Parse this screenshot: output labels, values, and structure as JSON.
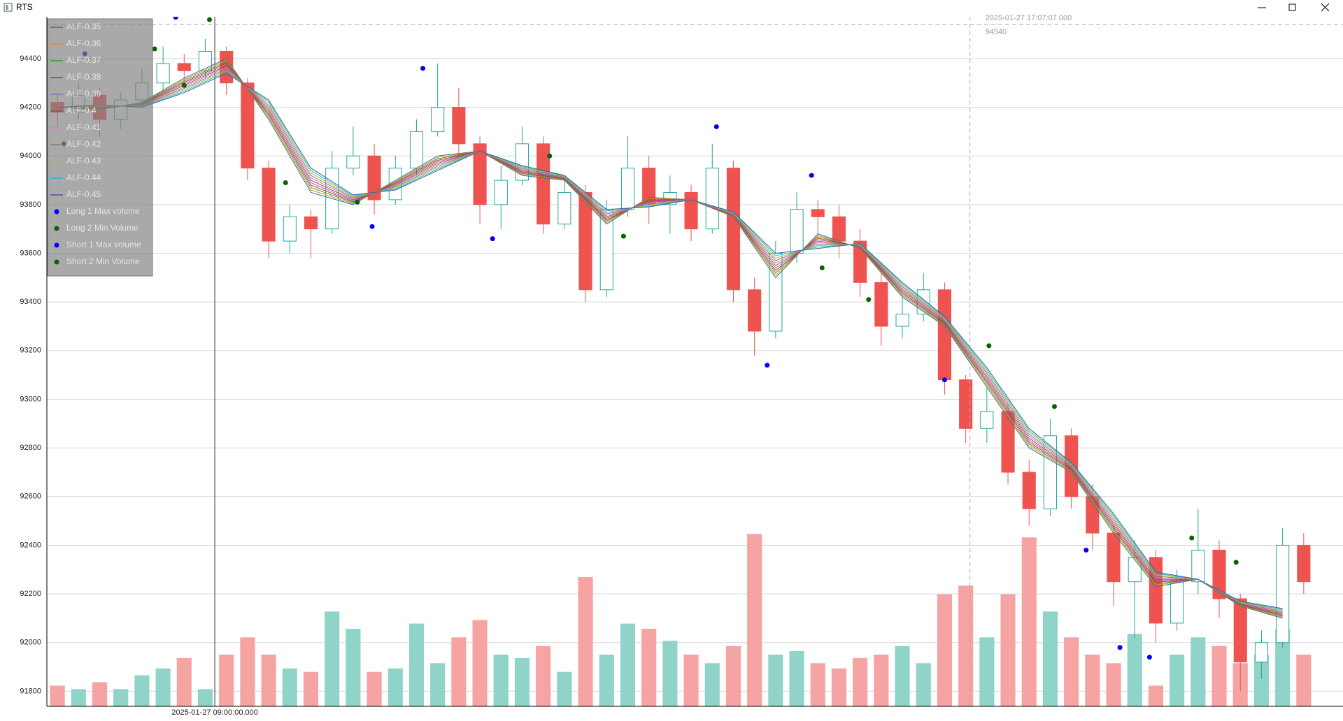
{
  "window": {
    "title": "RTS"
  },
  "chart_data": {
    "type": "candlestick",
    "open": [
      94220,
      94180,
      94250,
      94150,
      94230,
      94300,
      94380,
      94350,
      94430,
      94300,
      93950,
      93650,
      93750,
      93700,
      93950,
      94000,
      93820,
      93950,
      94100,
      94200,
      94050,
      93800,
      93900,
      94050,
      93720,
      93850,
      93450,
      93780,
      93950,
      93800,
      93850,
      93700,
      93950,
      93450,
      93280,
      93600,
      93780,
      93750,
      93650,
      93480,
      93300,
      93350,
      93450,
      93080,
      92880,
      92950,
      92700,
      92550,
      92850,
      92600,
      92450,
      92250,
      92350,
      92080,
      92250,
      92380,
      92180,
      91920,
      92000,
      92400
    ],
    "high": [
      94260,
      94300,
      94280,
      94260,
      94360,
      94450,
      94420,
      94480,
      94450,
      94320,
      93980,
      93800,
      93780,
      94020,
      94120,
      94050,
      94000,
      94150,
      94380,
      94280,
      94080,
      93960,
      94120,
      94080,
      93900,
      93880,
      93820,
      94080,
      94000,
      93920,
      93880,
      94050,
      93980,
      93500,
      93650,
      93850,
      93820,
      93800,
      93700,
      93520,
      93420,
      93520,
      93480,
      93100,
      93050,
      92980,
      92750,
      92920,
      92880,
      92650,
      92480,
      92420,
      92380,
      92300,
      92550,
      92420,
      92200,
      92050,
      92470,
      92450
    ],
    "low": [
      94120,
      94150,
      94080,
      94110,
      94200,
      94270,
      94300,
      94320,
      94250,
      93900,
      93580,
      93600,
      93580,
      93680,
      93920,
      93760,
      93800,
      93920,
      94080,
      94000,
      93720,
      93700,
      93880,
      93680,
      93700,
      93400,
      93420,
      93750,
      93720,
      93680,
      93650,
      93680,
      93400,
      93180,
      93250,
      93560,
      93680,
      93580,
      93420,
      93220,
      93250,
      93320,
      93020,
      92820,
      92820,
      92650,
      92480,
      92520,
      92550,
      92380,
      92150,
      92020,
      92000,
      92050,
      92200,
      92100,
      91800,
      91850,
      91980,
      92200
    ],
    "close": [
      94180,
      94250,
      94150,
      94230,
      94300,
      94380,
      94350,
      94430,
      94300,
      93950,
      93650,
      93750,
      93700,
      93950,
      94000,
      93820,
      93950,
      94100,
      94200,
      94050,
      93800,
      93900,
      94050,
      93720,
      93850,
      93450,
      93780,
      93950,
      93800,
      93850,
      93700,
      93950,
      93450,
      93280,
      93600,
      93780,
      93750,
      93650,
      93480,
      93300,
      93350,
      93450,
      93080,
      92880,
      92950,
      92700,
      92550,
      92850,
      92600,
      92450,
      92250,
      92350,
      92080,
      92250,
      92380,
      92180,
      91920,
      92000,
      92400,
      92250
    ],
    "volume": [
      12,
      10,
      14,
      10,
      18,
      22,
      28,
      10,
      30,
      40,
      30,
      22,
      20,
      55,
      45,
      20,
      22,
      48,
      25,
      40,
      50,
      30,
      28,
      35,
      20,
      75,
      30,
      48,
      45,
      38,
      30,
      25,
      35,
      100,
      30,
      32,
      25,
      22,
      28,
      30,
      35,
      25,
      65,
      70,
      40,
      65,
      98,
      55,
      40,
      30,
      25,
      42,
      12,
      30,
      40,
      35,
      25,
      30,
      45,
      30
    ],
    "up_color": "#26a69a",
    "down_color": "#ef5350",
    "volume_up_color": "#8fd3c9",
    "volume_down_color": "#f5a3a3",
    "xlim": [
      -0.5,
      60.86
    ],
    "xticks": [
      {
        "value": 7.45,
        "label": "2025-01-27 09:00:00.000"
      }
    ],
    "ylim": [
      91738,
      94572
    ],
    "yticks": [
      91800,
      92000,
      92200,
      92400,
      92600,
      92800,
      93000,
      93200,
      93400,
      93600,
      93800,
      94000,
      94200,
      94400
    ],
    "y2lim": [
      0,
      400
    ],
    "grid": true,
    "legend": "upper-left",
    "lines": {
      "x": [
        0,
        2,
        4,
        6,
        8,
        10,
        12,
        14,
        16,
        18,
        20,
        22,
        24,
        26,
        28,
        30,
        32,
        34,
        36,
        38,
        40,
        42,
        44,
        46,
        48,
        50,
        52,
        54,
        56,
        58
      ],
      "series": [
        {
          "name": "ALF-0.35",
          "color": "#1f77b4",
          "values": [
            94200,
            94190,
            94220,
            94320,
            94400,
            94150,
            93850,
            93800,
            93900,
            94000,
            94020,
            93920,
            93900,
            93720,
            93830,
            93820,
            93750,
            93500,
            93680,
            93620,
            93420,
            93300,
            93050,
            92800,
            92700,
            92450,
            92230,
            92260,
            92150,
            92100
          ]
        },
        {
          "name": "ALF-0.36",
          "color": "#ff7f0e",
          "values": [
            94200,
            94192,
            94218,
            94314,
            94394,
            94158,
            93860,
            93804,
            93896,
            93994,
            94020,
            93924,
            93902,
            93726,
            93826,
            93820,
            93752,
            93510,
            93674,
            93622,
            93426,
            93304,
            93058,
            92808,
            92704,
            92458,
            92236,
            92260,
            92152,
            92104
          ]
        },
        {
          "name": "ALF-0.37",
          "color": "#2ca02c",
          "values": [
            94200,
            94194,
            94216,
            94308,
            94388,
            94166,
            93870,
            93808,
            93892,
            93988,
            94020,
            93928,
            93904,
            93732,
            93822,
            93820,
            93754,
            93520,
            93668,
            93624,
            93432,
            93308,
            93066,
            92816,
            92708,
            92466,
            92242,
            92260,
            92154,
            92108
          ]
        },
        {
          "name": "ALF-0.38",
          "color": "#d62728",
          "values": [
            94200,
            94196,
            94214,
            94302,
            94382,
            94174,
            93880,
            93812,
            93888,
            93982,
            94020,
            93932,
            93906,
            93738,
            93818,
            93820,
            93756,
            93530,
            93662,
            93626,
            93438,
            93312,
            93074,
            92824,
            92712,
            92474,
            92248,
            92260,
            92156,
            92112
          ]
        },
        {
          "name": "ALF-0.39",
          "color": "#9467bd",
          "values": [
            94200,
            94198,
            94212,
            94296,
            94376,
            94182,
            93890,
            93816,
            93884,
            93976,
            94020,
            93936,
            93908,
            93744,
            93814,
            93820,
            93758,
            93540,
            93656,
            93628,
            93444,
            93316,
            93082,
            92832,
            92716,
            92482,
            92254,
            92260,
            92158,
            92116
          ]
        },
        {
          "name": "ALF-0.4",
          "color": "#8c564b",
          "values": [
            94200,
            94200,
            94210,
            94290,
            94370,
            94190,
            93900,
            93820,
            93880,
            93970,
            94020,
            93940,
            93910,
            93750,
            93810,
            93820,
            93760,
            93550,
            93650,
            93630,
            93450,
            93320,
            93090,
            92840,
            92720,
            92490,
            92260,
            92260,
            92160,
            92120
          ]
        },
        {
          "name": "ALF-0.41",
          "color": "#e377c2",
          "values": [
            94200,
            94202,
            94208,
            94284,
            94364,
            94198,
            93910,
            93824,
            93876,
            93964,
            94020,
            93944,
            93912,
            93756,
            93806,
            93820,
            93762,
            93560,
            93644,
            93632,
            93456,
            93324,
            93098,
            92848,
            92724,
            92498,
            92266,
            92260,
            92162,
            92124
          ]
        },
        {
          "name": "ALF-0.42",
          "color": "#7f7f7f",
          "values": [
            94200,
            94204,
            94206,
            94278,
            94358,
            94206,
            93920,
            93828,
            93872,
            93958,
            94020,
            93948,
            93914,
            93762,
            93802,
            93820,
            93764,
            93570,
            93638,
            93634,
            93462,
            93328,
            93106,
            92856,
            92728,
            92506,
            92272,
            92260,
            92164,
            92128
          ]
        },
        {
          "name": "ALF-0.43",
          "color": "#bcbd22",
          "values": [
            94200,
            94206,
            94204,
            94272,
            94352,
            94214,
            93930,
            93832,
            93868,
            93952,
            94020,
            93952,
            93916,
            93768,
            93798,
            93820,
            93766,
            93580,
            93632,
            93636,
            93468,
            93332,
            93114,
            92864,
            92732,
            92514,
            92278,
            92260,
            92166,
            92132
          ]
        },
        {
          "name": "ALF-0.44",
          "color": "#17becf",
          "values": [
            94200,
            94208,
            94202,
            94266,
            94346,
            94222,
            93940,
            93836,
            93864,
            93946,
            94020,
            93956,
            93918,
            93774,
            93794,
            93820,
            93768,
            93590,
            93626,
            93638,
            93474,
            93336,
            93122,
            92872,
            92736,
            92522,
            92284,
            92260,
            92168,
            92136
          ]
        },
        {
          "name": "ALF-0.45",
          "color": "#3a5fa8",
          "values": [
            94200,
            94210,
            94200,
            94260,
            94340,
            94230,
            93950,
            93840,
            93860,
            93940,
            94020,
            93960,
            93920,
            93780,
            93790,
            93820,
            93770,
            93600,
            93620,
            93640,
            93480,
            93340,
            93130,
            92880,
            92740,
            92530,
            92290,
            92260,
            92170,
            92140
          ]
        }
      ]
    },
    "markers": [
      {
        "name": "Long 1 Max volume",
        "color": "#0000ff",
        "x": [
          14.9,
          20.6,
          33.6,
          42,
          50.3,
          51.7
        ],
        "values": [
          93710,
          93660,
          93140,
          93080,
          91980,
          91940
        ]
      },
      {
        "name": "Long 2 Min Volume",
        "color": "#006400",
        "x": [
          0.3,
          6,
          10.8,
          14.2,
          26.8,
          36.2,
          38.4
        ],
        "values": [
          94050,
          94290,
          93890,
          93810,
          93670,
          93540,
          93410
        ]
      },
      {
        "name": "Short 1 Max volume",
        "color": "#0000ff",
        "x": [
          1.3,
          5.6,
          17.3,
          31.2,
          35.7,
          48.7
        ],
        "values": [
          94420,
          94570,
          94360,
          94120,
          93920,
          92380
        ]
      },
      {
        "name": "Short 2 Min Volume",
        "color": "#006400",
        "x": [
          4.6,
          7.2,
          23.3,
          44.1,
          47.2,
          53.7,
          55.8
        ],
        "values": [
          94440,
          94560,
          94000,
          93220,
          92970,
          92430,
          92330
        ]
      }
    ],
    "crosshair": {
      "x": 43.2,
      "label": "2025-01-27 17:07:07.000",
      "y": 94540
    }
  }
}
